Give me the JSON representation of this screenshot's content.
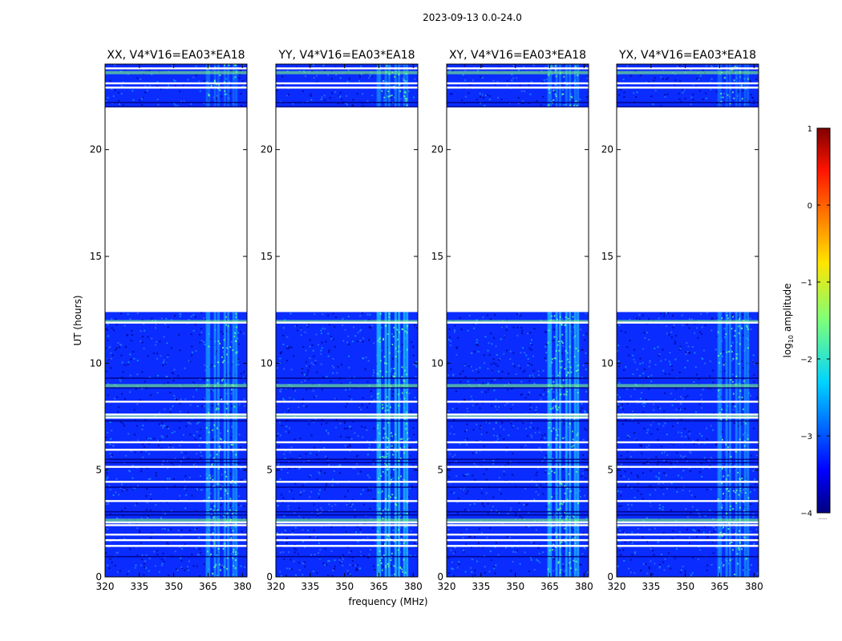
{
  "figure": {
    "suptitle": "2023-09-13 0.0-24.0",
    "xlabel": "frequency (MHz)",
    "ylabel": "UT (hours)",
    "colorbar_label": "log$_{10}$ amplitude",
    "colorbar_label_base": "log",
    "colorbar_label_sub": "10",
    "colorbar_label_rest": " amplitude",
    "colorbar_extra": "......"
  },
  "chart_data": {
    "type": "heatmap",
    "title": "2023-09-13 0.0-24.0",
    "xlabel": "frequency (MHz)",
    "ylabel": "UT (hours)",
    "xlim": [
      320,
      382
    ],
    "ylim": [
      0,
      24
    ],
    "xticks": [
      320,
      335,
      350,
      365,
      380
    ],
    "yticks": [
      0,
      5,
      10,
      15,
      20
    ],
    "panels": [
      {
        "title": "XX, V4*V16=EA03*EA18",
        "rfi_strength": 0.55
      },
      {
        "title": "YY, V4*V16=EA03*EA18",
        "rfi_strength": 0.75
      },
      {
        "title": "XY, V4*V16=EA03*EA18",
        "rfi_strength": 0.7
      },
      {
        "title": "YX, V4*V16=EA03*EA18",
        "rfi_strength": 0.5
      }
    ],
    "data_gap_hours": [
      12.4,
      22.0
    ],
    "flagged_rows_hours": [
      1.45,
      1.72,
      1.98,
      2.42,
      2.55,
      3.55,
      4.45,
      5.15,
      5.95,
      6.3,
      7.45,
      7.6,
      8.2,
      11.9
    ],
    "bright_rows_hours": [
      2.65,
      7.52,
      8.95,
      11.95,
      23.6
    ],
    "rfi_band_mhz": [
      364,
      378
    ],
    "colorbar": {
      "range": [
        -4,
        1
      ],
      "ticks": [
        -4,
        -3,
        -2,
        -1,
        0,
        1
      ],
      "tick_labels": [
        "−4",
        "−3",
        "−2",
        "−1",
        "0",
        "1"
      ],
      "colormap": "jet"
    }
  },
  "colors": {
    "background_blue": "#0a2cff",
    "dark_blue": "#00007f",
    "rfi_cyan": "#1cc8ff",
    "rfi_green": "#5fffa0",
    "bright_row_green": "#7dff7d"
  }
}
